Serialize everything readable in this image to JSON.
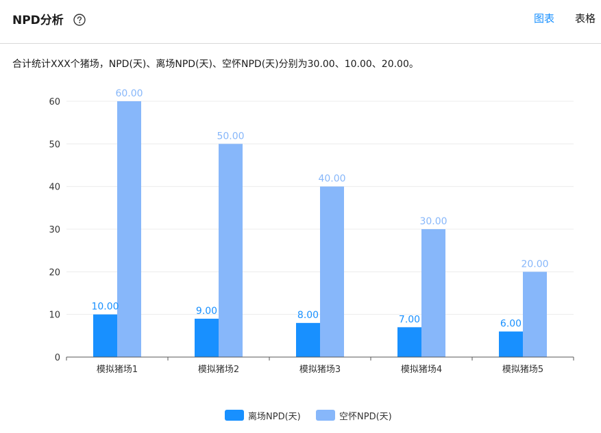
{
  "header": {
    "title": "NPD分析",
    "tabs": [
      {
        "label": "图表",
        "active": true
      },
      {
        "label": "表格",
        "active": false
      }
    ],
    "active_color": "#1890ff",
    "inactive_color": "#1a1a1a"
  },
  "summary": "合计统计XXX个猪场，NPD(天)、离场NPD(天)、空怀NPD(天)分别为30.00、10.00、20.00。",
  "chart_data": {
    "type": "bar",
    "categories": [
      "模拟猪场1",
      "模拟猪场2",
      "模拟猪场3",
      "模拟猪场4",
      "模拟猪场5"
    ],
    "series": [
      {
        "name": "离场NPD(天)",
        "values": [
          10,
          9,
          8,
          7,
          6
        ],
        "color": "#1890ff",
        "label_color": "#1890ff"
      },
      {
        "name": "空怀NPD(天)",
        "values": [
          60,
          50,
          40,
          30,
          20
        ],
        "color": "#87b7fa",
        "label_color": "#87b7fa"
      }
    ],
    "data_labels": [
      [
        "10.00",
        "9.00",
        "8.00",
        "7.00",
        "6.00"
      ],
      [
        "60.00",
        "50.00",
        "40.00",
        "30.00",
        "20.00"
      ]
    ],
    "yticks": [
      "0",
      "10",
      "20",
      "30",
      "40",
      "50",
      "60"
    ],
    "ylim": [
      0,
      60
    ],
    "grid": true,
    "legend_position": "bottom-center"
  }
}
